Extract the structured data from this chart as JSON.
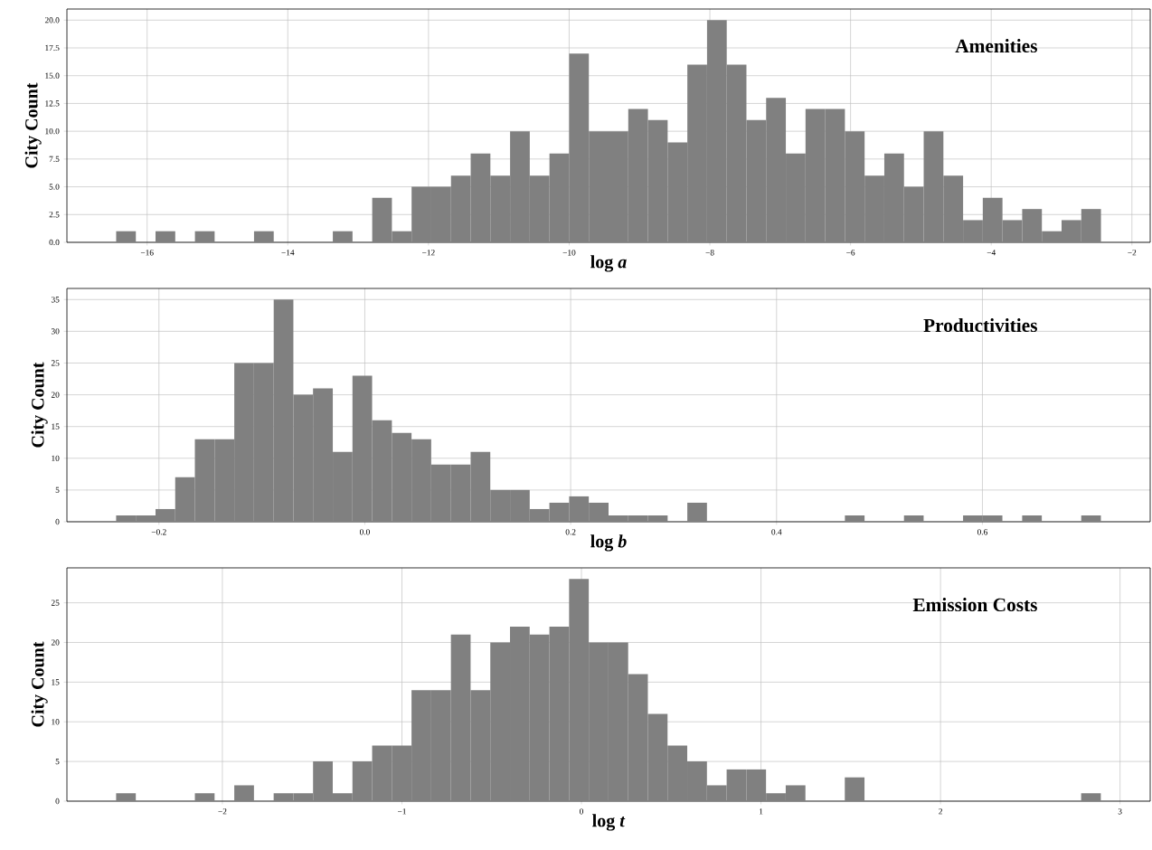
{
  "chart_data": [
    {
      "type": "histogram",
      "xlabel": "log *a*",
      "ylabel": "City Count",
      "annotations": [
        "Amenities"
      ],
      "color": "#808080",
      "grid": true,
      "bins": [
        -16.44,
        -16.16,
        -15.88,
        -15.6,
        -15.32,
        -15.04,
        -14.76,
        -14.48,
        -14.2,
        -13.92,
        -13.64,
        -13.36,
        -13.08,
        -12.8,
        -12.52,
        -12.24,
        -11.96,
        -11.68,
        -11.4,
        -11.12,
        -10.84,
        -10.56,
        -10.28,
        -10,
        -9.72,
        -9.44,
        -9.16,
        -8.88,
        -8.6,
        -8.32,
        -8.04,
        -7.76,
        -7.48,
        -7.2,
        -6.92,
        -6.64,
        -6.36,
        -6.08,
        -5.8,
        -5.52,
        -5.24,
        -4.96,
        -4.68,
        -4.4,
        -4.12,
        -3.84,
        -3.56,
        -3.28,
        -3,
        -2.72,
        -2.44
      ],
      "values": [
        1,
        0,
        1,
        0,
        1,
        0,
        0,
        1,
        0,
        0,
        0,
        1,
        0,
        4,
        1,
        5,
        5,
        6,
        8,
        6,
        10,
        6,
        8,
        17,
        10,
        10,
        12,
        11,
        9,
        16,
        20,
        16,
        11,
        13,
        8,
        12,
        12,
        10,
        6,
        8,
        5,
        10,
        6,
        2,
        4,
        2,
        3,
        1,
        2,
        3
      ],
      "xlim": [
        -17.14,
        -1.74
      ],
      "ylim": [
        0,
        21
      ],
      "xticks": [
        {
          "value": -16,
          "label": "−16"
        },
        {
          "value": -14,
          "label": "−14"
        },
        {
          "value": -12,
          "label": "−12"
        },
        {
          "value": -10,
          "label": "−10"
        },
        {
          "value": -8,
          "label": "−8"
        },
        {
          "value": -6,
          "label": "−6"
        },
        {
          "value": -4,
          "label": "−4"
        },
        {
          "value": -2,
          "label": "−2"
        }
      ],
      "yticks": [
        {
          "value": 0,
          "label": "0.0"
        },
        {
          "value": 2.5,
          "label": "2.5"
        },
        {
          "value": 5,
          "label": "5.0"
        },
        {
          "value": 7.5,
          "label": "7.5"
        },
        {
          "value": 10,
          "label": "10.0"
        },
        {
          "value": 12.5,
          "label": "12.5"
        },
        {
          "value": 15,
          "label": "15.0"
        },
        {
          "value": 17.5,
          "label": "17.5"
        },
        {
          "value": 20,
          "label": "20.0"
        }
      ]
    },
    {
      "type": "histogram",
      "xlabel": "log *b*",
      "ylabel": "City Count",
      "annotations": [
        "Productivities"
      ],
      "color": "#808080",
      "grid": true,
      "bins": [
        -0.2416,
        -0.2225,
        -0.2033,
        -0.1842,
        -0.1651,
        -0.1459,
        -0.1268,
        -0.1077,
        -0.0885,
        -0.0694,
        -0.0503,
        -0.0311,
        -0.012,
        0.0071,
        0.0263,
        0.0454,
        0.0645,
        0.0837,
        0.1028,
        0.1219,
        0.1411,
        0.1602,
        0.1793,
        0.1985,
        0.2176,
        0.2368,
        0.2559,
        0.275,
        0.2942,
        0.3133,
        0.3324,
        0.3516,
        0.3707,
        0.3898,
        0.409,
        0.4281,
        0.4472,
        0.4664,
        0.4855,
        0.5046,
        0.5238,
        0.5429,
        0.562,
        0.5812,
        0.6003,
        0.6194,
        0.6386,
        0.6577,
        0.6768,
        0.696,
        0.7151
      ],
      "values": [
        1,
        1,
        2,
        7,
        13,
        13,
        25,
        25,
        35,
        20,
        21,
        11,
        23,
        16,
        14,
        13,
        9,
        9,
        11,
        5,
        5,
        2,
        3,
        4,
        3,
        1,
        1,
        1,
        0,
        3,
        0,
        0,
        0,
        0,
        0,
        0,
        0,
        1,
        0,
        0,
        1,
        0,
        0,
        1,
        1,
        0,
        1,
        0,
        0,
        1
      ],
      "xlim": [
        -0.2894,
        0.763
      ],
      "ylim": [
        0,
        36.75
      ],
      "xticks": [
        {
          "value": -0.2,
          "label": "−0.2"
        },
        {
          "value": 0,
          "label": "0.0"
        },
        {
          "value": 0.2,
          "label": "0.2"
        },
        {
          "value": 0.4,
          "label": "0.4"
        },
        {
          "value": 0.6,
          "label": "0.6"
        }
      ],
      "yticks": [
        0,
        5,
        10,
        15,
        20,
        25,
        30,
        35
      ]
    },
    {
      "type": "histogram",
      "xlabel": "log *t*",
      "ylabel": "City Count",
      "annotations": [
        "Emission Costs"
      ],
      "color": "#808080",
      "grid": true,
      "bins": [
        -2.592,
        -2.4823,
        -2.3726,
        -2.2629,
        -2.1532,
        -2.0435,
        -1.9338,
        -1.8241,
        -1.7144,
        -1.6047,
        -1.495,
        -1.3853,
        -1.2756,
        -1.1659,
        -1.0562,
        -0.9465,
        -0.8368,
        -0.7271,
        -0.6174,
        -0.5077,
        -0.398,
        -0.2883,
        -0.1786,
        -0.0689,
        0.0408,
        0.1505,
        0.2602,
        0.3699,
        0.4796,
        0.5893,
        0.699,
        0.8087,
        0.9184,
        1.0281,
        1.1378,
        1.2475,
        1.3572,
        1.4669,
        1.5766,
        1.6863,
        1.796,
        1.9057,
        2.0154,
        2.1251,
        2.2348,
        2.3445,
        2.4542,
        2.5639,
        2.6736,
        2.7833,
        2.893
      ],
      "values": [
        1,
        0,
        0,
        0,
        1,
        0,
        2,
        0,
        1,
        1,
        5,
        1,
        5,
        7,
        7,
        14,
        14,
        21,
        14,
        20,
        22,
        21,
        22,
        28,
        20,
        20,
        16,
        11,
        7,
        5,
        2,
        4,
        4,
        1,
        2,
        0,
        0,
        3,
        0,
        0,
        0,
        0,
        0,
        0,
        0,
        0,
        0,
        0,
        0,
        1
      ],
      "xlim": [
        -2.866,
        3.168
      ],
      "ylim": [
        0,
        29.4
      ],
      "xticks": [
        {
          "value": -2,
          "label": "−2"
        },
        {
          "value": -1,
          "label": "−1"
        },
        0,
        1,
        2,
        3
      ],
      "yticks": [
        0,
        5,
        10,
        15,
        20,
        25
      ]
    }
  ]
}
